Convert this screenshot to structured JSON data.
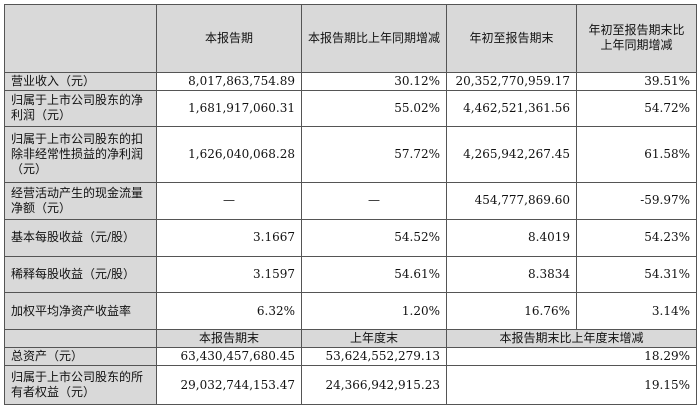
{
  "table": {
    "header": [
      "",
      "本报告期",
      "本报告期比上年同期增减",
      "年初至报告期末",
      "年初至报告期末比上年同期增减"
    ],
    "rows": [
      {
        "label": "营业收入（元）",
        "values": [
          "8,017,863,754.89",
          "30.12%",
          "20,352,770,959.17",
          "39.51%"
        ]
      },
      {
        "label": "归属于上市公司股东的净利润（元）",
        "values": [
          "1,681,917,060.31",
          "55.02%",
          "4,462,521,361.56",
          "54.72%"
        ]
      },
      {
        "label": "归属于上市公司股东的扣除非经常性损益的净利润（元）",
        "values": [
          "1,626,040,068.28",
          "57.72%",
          "4,265,942,267.45",
          "61.58%"
        ]
      },
      {
        "label": "经营活动产生的现金流量净额（元）",
        "values": [
          "—",
          "—",
          "454,777,869.60",
          "-59.97%"
        ]
      },
      {
        "label": "基本每股收益（元/股）",
        "values": [
          "3.1667",
          "54.52%",
          "8.4019",
          "54.23%"
        ]
      },
      {
        "label": "稀释每股收益（元/股）",
        "values": [
          "3.1597",
          "54.61%",
          "8.3834",
          "54.31%"
        ]
      },
      {
        "label": "加权平均净资产收益率",
        "values": [
          "6.32%",
          "1.20%",
          "16.76%",
          "3.14%"
        ]
      }
    ],
    "header2": [
      "本报告期末",
      "上年度末",
      "本报告期末比上年度末增减"
    ],
    "rows2": [
      {
        "label": "总资产（元）",
        "values": [
          "63,430,457,680.45",
          "53,624,552,279.13",
          "18.29%"
        ]
      },
      {
        "label": "归属于上市公司股东的所有者权益（元）",
        "values": [
          "29,032,744,153.47",
          "24,366,942,915.23",
          "19.15%"
        ]
      }
    ]
  }
}
